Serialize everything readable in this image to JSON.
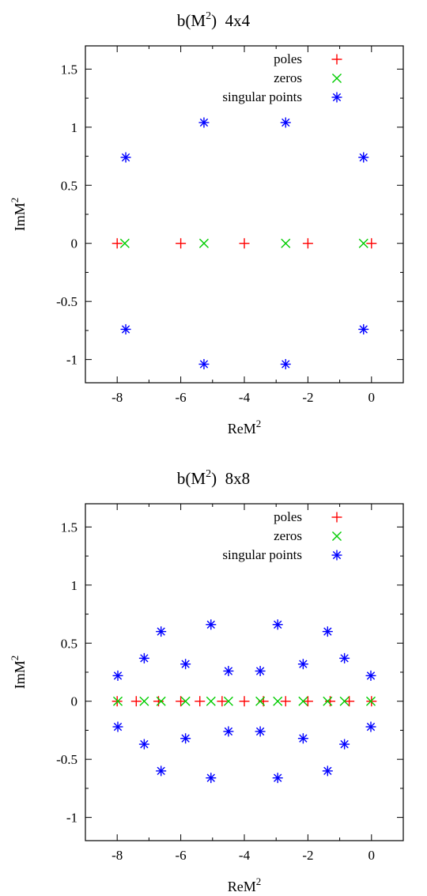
{
  "chart_data": [
    {
      "type": "scatter",
      "title_main": "b(M",
      "title_sup": "2",
      "title_tail": ")  4x4",
      "xlabel_main": "ReM",
      "xlabel_sup": "2",
      "ylabel_main": "ImM",
      "ylabel_sup": "2",
      "xlim": [
        -9,
        1
      ],
      "ylim": [
        -1.2,
        1.7
      ],
      "xticks": [
        -8,
        -6,
        -4,
        -2,
        0
      ],
      "yticks": [
        -1,
        -0.5,
        0,
        0.5,
        1,
        1.5
      ],
      "xtick_labels": [
        "-8",
        "-6",
        "-4",
        "-2",
        "0"
      ],
      "ytick_labels": [
        "-1",
        "-0.5",
        "0",
        "0.5",
        "1",
        "1.5"
      ],
      "legend_position": "top-right",
      "series": [
        {
          "name": "poles",
          "marker": "plus",
          "color": "#ff0000",
          "points": [
            [
              -8,
              0
            ],
            [
              -6,
              0
            ],
            [
              -4,
              0
            ],
            [
              -2,
              0
            ],
            [
              0,
              0
            ]
          ]
        },
        {
          "name": "zeros",
          "marker": "x",
          "color": "#00cc00",
          "points": [
            [
              -7.76,
              0
            ],
            [
              -5.27,
              0
            ],
            [
              -2.7,
              0
            ],
            [
              -0.25,
              0
            ]
          ]
        },
        {
          "name": "singular points",
          "marker": "star",
          "color": "#0000ff",
          "points": [
            [
              -7.73,
              0.74
            ],
            [
              -5.27,
              1.04
            ],
            [
              -2.7,
              1.04
            ],
            [
              -0.25,
              0.74
            ],
            [
              -7.73,
              -0.74
            ],
            [
              -5.27,
              -1.04
            ],
            [
              -2.7,
              -1.04
            ],
            [
              -0.25,
              -0.74
            ]
          ]
        }
      ]
    },
    {
      "type": "scatter",
      "title_main": "b(M",
      "title_sup": "2",
      "title_tail": ")  8x8",
      "xlabel_main": "ReM",
      "xlabel_sup": "2",
      "ylabel_main": "ImM",
      "ylabel_sup": "2",
      "xlim": [
        -9,
        1
      ],
      "ylim": [
        -1.2,
        1.7
      ],
      "xticks": [
        -8,
        -6,
        -4,
        -2,
        0
      ],
      "yticks": [
        -1,
        -0.5,
        0,
        0.5,
        1,
        1.5
      ],
      "xtick_labels": [
        "-8",
        "-6",
        "-4",
        "-2",
        "0"
      ],
      "ytick_labels": [
        "-1",
        "-0.5",
        "0",
        "0.5",
        "1",
        "1.5"
      ],
      "legend_position": "top-right",
      "series": [
        {
          "name": "poles",
          "marker": "plus",
          "color": "#ff0000",
          "points": [
            [
              -8,
              0
            ],
            [
              -7.4,
              0
            ],
            [
              -6.7,
              0
            ],
            [
              -6,
              0
            ],
            [
              -5.4,
              0
            ],
            [
              -4.7,
              0
            ],
            [
              -4,
              0
            ],
            [
              -3.4,
              0
            ],
            [
              -2.7,
              0
            ],
            [
              -2,
              0
            ],
            [
              -1.3,
              0
            ],
            [
              -0.7,
              0
            ],
            [
              0,
              0
            ]
          ]
        },
        {
          "name": "zeros",
          "marker": "x",
          "color": "#00cc00",
          "points": [
            [
              -7.98,
              0
            ],
            [
              -7.15,
              0
            ],
            [
              -6.62,
              0
            ],
            [
              -5.85,
              0
            ],
            [
              -5.05,
              0
            ],
            [
              -4.5,
              0
            ],
            [
              -3.5,
              0
            ],
            [
              -2.95,
              0
            ],
            [
              -2.15,
              0
            ],
            [
              -1.38,
              0
            ],
            [
              -0.85,
              0
            ],
            [
              -0.02,
              0
            ]
          ]
        },
        {
          "name": "singular points",
          "marker": "star",
          "color": "#0000ff",
          "points": [
            [
              -7.98,
              0.22
            ],
            [
              -7.15,
              0.37
            ],
            [
              -6.62,
              0.6
            ],
            [
              -5.85,
              0.32
            ],
            [
              -5.05,
              0.66
            ],
            [
              -4.5,
              0.26
            ],
            [
              -3.5,
              0.26
            ],
            [
              -2.95,
              0.66
            ],
            [
              -2.15,
              0.32
            ],
            [
              -1.38,
              0.6
            ],
            [
              -0.85,
              0.37
            ],
            [
              -0.02,
              0.22
            ],
            [
              -7.98,
              -0.22
            ],
            [
              -7.15,
              -0.37
            ],
            [
              -6.62,
              -0.6
            ],
            [
              -5.85,
              -0.32
            ],
            [
              -5.05,
              -0.66
            ],
            [
              -4.5,
              -0.26
            ],
            [
              -3.5,
              -0.26
            ],
            [
              -2.95,
              -0.66
            ],
            [
              -2.15,
              -0.32
            ],
            [
              -1.38,
              -0.6
            ],
            [
              -0.85,
              -0.37
            ],
            [
              -0.02,
              -0.22
            ]
          ]
        }
      ]
    }
  ]
}
